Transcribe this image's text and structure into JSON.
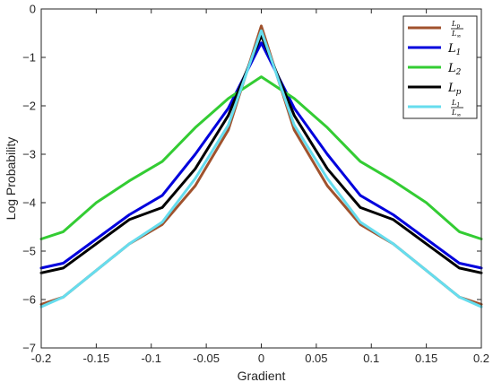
{
  "chart_data": {
    "type": "line",
    "title": "",
    "xlabel": "Gradient",
    "ylabel": "Log Probability",
    "xlim": [
      -0.2,
      0.2
    ],
    "ylim": [
      -7,
      0
    ],
    "x_ticks": [
      "-0.2",
      "-0.15",
      "-0.1",
      "-0.05",
      "0",
      "0.05",
      "0.1",
      "0.15",
      "0.2"
    ],
    "x_tick_values": [
      -0.2,
      -0.15,
      -0.1,
      -0.05,
      0,
      0.05,
      0.1,
      0.15,
      0.2
    ],
    "y_ticks": [
      "0",
      "−1",
      "−2",
      "−3",
      "−4",
      "−5",
      "−6",
      "−7"
    ],
    "y_tick_values": [
      0,
      -1,
      -2,
      -3,
      -4,
      -5,
      -6,
      -7
    ],
    "grid": false,
    "legend_position": "top-right",
    "x": [
      -0.2,
      -0.18,
      -0.15,
      -0.12,
      -0.09,
      -0.06,
      -0.03,
      0,
      0.03,
      0.06,
      0.09,
      0.12,
      0.15,
      0.18,
      0.2
    ],
    "series": [
      {
        "name": "Lp/L∞",
        "legend": {
          "base": "L",
          "sub": "p",
          "den_base": "L",
          "den_sub": "∞",
          "fraction": true
        },
        "color": "#a0522d",
        "values": [
          -6.1,
          -5.95,
          -5.4,
          -4.85,
          -4.45,
          -3.65,
          -2.5,
          -0.35,
          -2.5,
          -3.65,
          -4.45,
          -4.85,
          -5.4,
          -5.95,
          -6.1
        ]
      },
      {
        "name": "L1",
        "legend": {
          "base": "L",
          "sub": "1",
          "fraction": false
        },
        "color": "#0000dd",
        "values": [
          -5.35,
          -5.25,
          -4.75,
          -4.25,
          -3.85,
          -3.0,
          -2.05,
          -0.7,
          -2.05,
          -3.0,
          -3.85,
          -4.25,
          -4.75,
          -5.25,
          -5.35
        ]
      },
      {
        "name": "L2",
        "legend": {
          "base": "L",
          "sub": "2",
          "fraction": false
        },
        "color": "#33cc33",
        "values": [
          -4.75,
          -4.6,
          -4.0,
          -3.55,
          -3.15,
          -2.45,
          -1.85,
          -1.4,
          -1.85,
          -2.45,
          -3.15,
          -3.55,
          -4.0,
          -4.6,
          -4.75
        ]
      },
      {
        "name": "Lp",
        "legend": {
          "base": "L",
          "sub": "p",
          "fraction": false
        },
        "color": "#000000",
        "values": [
          -5.45,
          -5.35,
          -4.85,
          -4.35,
          -4.1,
          -3.3,
          -2.2,
          -0.55,
          -2.2,
          -3.3,
          -4.1,
          -4.35,
          -4.85,
          -5.35,
          -5.45
        ]
      },
      {
        "name": "L1/L∞",
        "legend": {
          "base": "L",
          "sub": "1",
          "den_base": "L",
          "den_sub": "∞",
          "fraction": true
        },
        "color": "#66ddee",
        "values": [
          -6.15,
          -5.95,
          -5.4,
          -4.85,
          -4.4,
          -3.5,
          -2.4,
          -0.45,
          -2.4,
          -3.5,
          -4.4,
          -4.85,
          -5.4,
          -5.95,
          -6.15
        ]
      }
    ]
  }
}
